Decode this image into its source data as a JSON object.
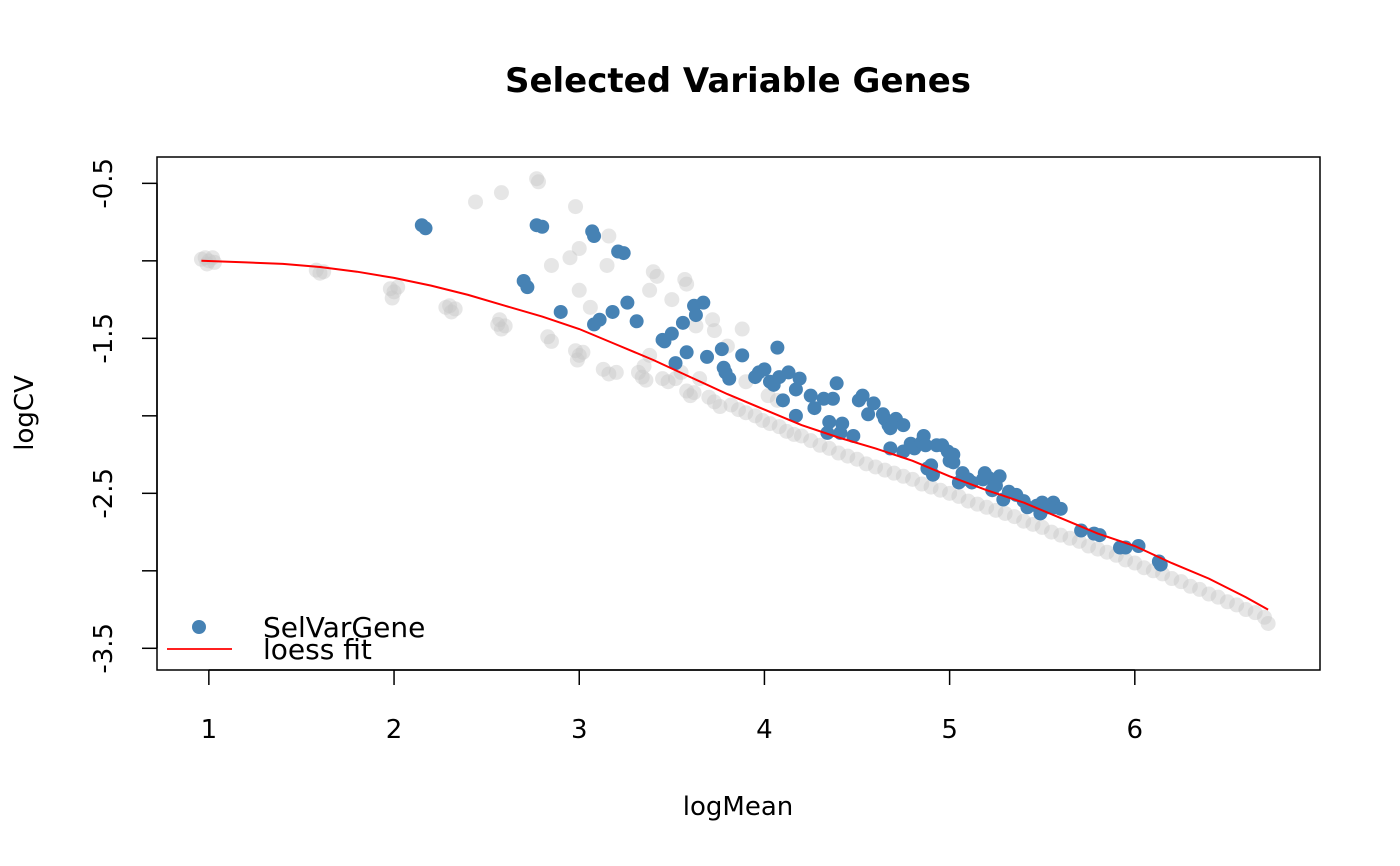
{
  "chart_data": {
    "type": "scatter",
    "title": "Selected Variable Genes",
    "xlabel": "logMean",
    "ylabel": "logCV",
    "xlim": [
      0.72,
      7.0
    ],
    "ylim": [
      -3.64,
      -0.33
    ],
    "xticks": [
      1,
      2,
      3,
      4,
      5,
      6
    ],
    "xtick_labels": [
      "1",
      "2",
      "3",
      "4",
      "5",
      "6"
    ],
    "yticks": [
      -0.5,
      -1.0,
      -1.5,
      -2.0,
      -2.5,
      -3.0,
      -3.5
    ],
    "ytick_labels": [
      "-0.5",
      "",
      "-1.5",
      "",
      "-2.5",
      "",
      "-3.5"
    ],
    "grid": false,
    "legend": {
      "position": "bottom-left",
      "entries": [
        {
          "label": "SelVarGene",
          "marker": "point",
          "color": "#4682B4"
        },
        {
          "label": "loess fit",
          "marker": "line",
          "color": "#FF0000"
        }
      ]
    },
    "colors": {
      "background_genes": "#C8C8C8",
      "selected_genes": "#4682B4",
      "loess": "#FF0000"
    },
    "series": [
      {
        "name": "SelVarGene",
        "kind": "points",
        "points": [
          [
            2.15,
            -0.77
          ],
          [
            2.17,
            -0.79
          ],
          [
            2.7,
            -1.13
          ],
          [
            2.72,
            -1.17
          ],
          [
            2.77,
            -0.77
          ],
          [
            2.8,
            -0.78
          ],
          [
            2.9,
            -1.33
          ],
          [
            3.07,
            -0.81
          ],
          [
            3.08,
            -0.84
          ],
          [
            3.08,
            -1.41
          ],
          [
            3.11,
            -1.38
          ],
          [
            3.18,
            -1.33
          ],
          [
            3.21,
            -0.94
          ],
          [
            3.24,
            -0.95
          ],
          [
            3.26,
            -1.27
          ],
          [
            3.31,
            -1.39
          ],
          [
            3.45,
            -1.51
          ],
          [
            3.46,
            -1.52
          ],
          [
            3.5,
            -1.47
          ],
          [
            3.52,
            -1.66
          ],
          [
            3.56,
            -1.4
          ],
          [
            3.58,
            -1.59
          ],
          [
            3.62,
            -1.29
          ],
          [
            3.63,
            -1.35
          ],
          [
            3.67,
            -1.27
          ],
          [
            3.69,
            -1.62
          ],
          [
            3.77,
            -1.57
          ],
          [
            3.78,
            -1.69
          ],
          [
            3.79,
            -1.72
          ],
          [
            3.81,
            -1.76
          ],
          [
            3.88,
            -1.61
          ],
          [
            3.95,
            -1.75
          ],
          [
            3.97,
            -1.72
          ],
          [
            4.0,
            -1.7
          ],
          [
            4.03,
            -1.78
          ],
          [
            4.05,
            -1.8
          ],
          [
            4.07,
            -1.56
          ],
          [
            4.08,
            -1.75
          ],
          [
            4.1,
            -1.9
          ],
          [
            4.13,
            -1.72
          ],
          [
            4.17,
            -1.83
          ],
          [
            4.17,
            -2.0
          ],
          [
            4.19,
            -1.76
          ],
          [
            4.25,
            -1.87
          ],
          [
            4.27,
            -1.95
          ],
          [
            4.32,
            -1.89
          ],
          [
            4.34,
            -2.11
          ],
          [
            4.35,
            -2.04
          ],
          [
            4.37,
            -1.89
          ],
          [
            4.39,
            -1.79
          ],
          [
            4.41,
            -2.11
          ],
          [
            4.42,
            -2.05
          ],
          [
            4.48,
            -2.13
          ],
          [
            4.51,
            -1.9
          ],
          [
            4.53,
            -1.87
          ],
          [
            4.56,
            -1.99
          ],
          [
            4.59,
            -1.92
          ],
          [
            4.64,
            -1.99
          ],
          [
            4.65,
            -2.02
          ],
          [
            4.66,
            -2.03
          ],
          [
            4.67,
            -2.06
          ],
          [
            4.68,
            -2.08
          ],
          [
            4.68,
            -2.21
          ],
          [
            4.71,
            -2.02
          ],
          [
            4.75,
            -2.06
          ],
          [
            4.75,
            -2.23
          ],
          [
            4.79,
            -2.18
          ],
          [
            4.81,
            -2.21
          ],
          [
            4.85,
            -2.17
          ],
          [
            4.86,
            -2.13
          ],
          [
            4.87,
            -2.19
          ],
          [
            4.88,
            -2.34
          ],
          [
            4.9,
            -2.32
          ],
          [
            4.91,
            -2.38
          ],
          [
            4.93,
            -2.19
          ],
          [
            4.96,
            -2.19
          ],
          [
            4.99,
            -2.23
          ],
          [
            5.0,
            -2.29
          ],
          [
            5.02,
            -2.25
          ],
          [
            5.02,
            -2.3
          ],
          [
            5.05,
            -2.43
          ],
          [
            5.07,
            -2.37
          ],
          [
            5.1,
            -2.41
          ],
          [
            5.12,
            -2.43
          ],
          [
            5.18,
            -2.41
          ],
          [
            5.19,
            -2.37
          ],
          [
            5.21,
            -2.4
          ],
          [
            5.23,
            -2.48
          ],
          [
            5.25,
            -2.45
          ],
          [
            5.27,
            -2.39
          ],
          [
            5.29,
            -2.54
          ],
          [
            5.32,
            -2.49
          ],
          [
            5.36,
            -2.51
          ],
          [
            5.4,
            -2.55
          ],
          [
            5.42,
            -2.59
          ],
          [
            5.47,
            -2.58
          ],
          [
            5.49,
            -2.63
          ],
          [
            5.5,
            -2.56
          ],
          [
            5.53,
            -2.59
          ],
          [
            5.56,
            -2.56
          ],
          [
            5.57,
            -2.59
          ],
          [
            5.6,
            -2.6
          ],
          [
            5.71,
            -2.74
          ],
          [
            5.78,
            -2.76
          ],
          [
            5.81,
            -2.77
          ],
          [
            5.92,
            -2.85
          ],
          [
            5.95,
            -2.85
          ],
          [
            6.02,
            -2.84
          ],
          [
            6.13,
            -2.94
          ],
          [
            6.14,
            -2.96
          ]
        ]
      },
      {
        "name": "",
        "kind": "points",
        "note_color": "background_genes",
        "points": [
          [
            0.96,
            -0.99
          ],
          [
            0.98,
            -0.98
          ],
          [
            1.0,
            -1.0
          ],
          [
            1.02,
            -0.98
          ],
          [
            1.03,
            -1.01
          ],
          [
            0.99,
            -1.02
          ],
          [
            1.58,
            -1.06
          ],
          [
            1.6,
            -1.08
          ],
          [
            1.62,
            -1.07
          ],
          [
            1.98,
            -1.18
          ],
          [
            2.0,
            -1.2
          ],
          [
            2.02,
            -1.17
          ],
          [
            1.99,
            -1.24
          ],
          [
            2.28,
            -1.3
          ],
          [
            2.31,
            -1.33
          ],
          [
            2.33,
            -1.31
          ],
          [
            2.3,
            -1.29
          ],
          [
            2.56,
            -1.41
          ],
          [
            2.58,
            -1.44
          ],
          [
            2.6,
            -1.42
          ],
          [
            2.57,
            -1.38
          ],
          [
            2.83,
            -1.49
          ],
          [
            2.85,
            -1.52
          ],
          [
            2.98,
            -1.58
          ],
          [
            3.0,
            -1.61
          ],
          [
            3.02,
            -1.59
          ],
          [
            2.99,
            -1.64
          ],
          [
            3.13,
            -1.7
          ],
          [
            3.16,
            -1.73
          ],
          [
            3.2,
            -1.72
          ],
          [
            3.32,
            -1.72
          ],
          [
            3.34,
            -1.75
          ],
          [
            3.36,
            -1.77
          ],
          [
            3.45,
            -1.76
          ],
          [
            3.48,
            -1.78
          ],
          [
            3.52,
            -1.76
          ],
          [
            3.58,
            -1.84
          ],
          [
            3.6,
            -1.87
          ],
          [
            3.62,
            -1.85
          ],
          [
            3.7,
            -1.88
          ],
          [
            3.73,
            -1.91
          ],
          [
            3.76,
            -1.94
          ],
          [
            3.82,
            -1.93
          ],
          [
            3.86,
            -1.96
          ],
          [
            3.9,
            -1.98
          ],
          [
            3.95,
            -2.0
          ],
          [
            3.99,
            -2.03
          ],
          [
            4.03,
            -2.05
          ],
          [
            4.08,
            -2.07
          ],
          [
            4.12,
            -2.1
          ],
          [
            4.16,
            -2.12
          ],
          [
            4.2,
            -2.13
          ],
          [
            4.25,
            -2.16
          ],
          [
            4.3,
            -2.19
          ],
          [
            4.35,
            -2.21
          ],
          [
            4.4,
            -2.24
          ],
          [
            4.45,
            -2.26
          ],
          [
            4.5,
            -2.28
          ],
          [
            4.55,
            -2.31
          ],
          [
            4.6,
            -2.33
          ],
          [
            4.65,
            -2.35
          ],
          [
            4.7,
            -2.37
          ],
          [
            4.75,
            -2.39
          ],
          [
            4.8,
            -2.41
          ],
          [
            4.85,
            -2.44
          ],
          [
            4.9,
            -2.46
          ],
          [
            4.95,
            -2.48
          ],
          [
            5.0,
            -2.5
          ],
          [
            5.05,
            -2.52
          ],
          [
            5.1,
            -2.55
          ],
          [
            5.15,
            -2.57
          ],
          [
            5.2,
            -2.59
          ],
          [
            5.25,
            -2.61
          ],
          [
            5.3,
            -2.63
          ],
          [
            5.35,
            -2.65
          ],
          [
            5.4,
            -2.68
          ],
          [
            5.45,
            -2.7
          ],
          [
            5.5,
            -2.72
          ],
          [
            5.55,
            -2.75
          ],
          [
            5.6,
            -2.77
          ],
          [
            5.65,
            -2.79
          ],
          [
            5.7,
            -2.81
          ],
          [
            5.75,
            -2.84
          ],
          [
            5.8,
            -2.86
          ],
          [
            5.85,
            -2.88
          ],
          [
            5.9,
            -2.9
          ],
          [
            5.95,
            -2.93
          ],
          [
            6.0,
            -2.95
          ],
          [
            6.05,
            -2.98
          ],
          [
            6.1,
            -3.0
          ],
          [
            6.15,
            -3.02
          ],
          [
            6.2,
            -3.05
          ],
          [
            6.25,
            -3.07
          ],
          [
            6.3,
            -3.1
          ],
          [
            6.35,
            -3.12
          ],
          [
            6.4,
            -3.15
          ],
          [
            6.45,
            -3.17
          ],
          [
            6.5,
            -3.2
          ],
          [
            6.55,
            -3.22
          ],
          [
            6.6,
            -3.25
          ],
          [
            6.65,
            -3.27
          ],
          [
            6.7,
            -3.3
          ],
          [
            6.72,
            -3.34
          ],
          [
            2.44,
            -0.62
          ],
          [
            2.58,
            -0.56
          ],
          [
            2.77,
            -0.47
          ],
          [
            2.78,
            -0.49
          ],
          [
            2.98,
            -0.65
          ],
          [
            3.0,
            -0.92
          ],
          [
            2.95,
            -0.98
          ],
          [
            2.85,
            -1.03
          ],
          [
            3.0,
            -1.19
          ],
          [
            3.06,
            -1.3
          ],
          [
            3.15,
            -1.03
          ],
          [
            3.16,
            -0.84
          ],
          [
            3.4,
            -1.07
          ],
          [
            3.42,
            -1.1
          ],
          [
            3.38,
            -1.19
          ],
          [
            3.5,
            -1.25
          ],
          [
            3.57,
            -1.12
          ],
          [
            3.58,
            -1.15
          ],
          [
            3.72,
            -1.38
          ],
          [
            3.73,
            -1.45
          ],
          [
            3.88,
            -1.44
          ],
          [
            3.8,
            -1.55
          ],
          [
            3.9,
            -1.78
          ],
          [
            4.02,
            -1.87
          ],
          [
            4.07,
            -1.9
          ],
          [
            3.63,
            -1.42
          ],
          [
            3.38,
            -1.61
          ],
          [
            3.35,
            -1.68
          ],
          [
            3.55,
            -1.72
          ],
          [
            3.65,
            -1.76
          ]
        ]
      },
      {
        "name": "loess fit",
        "kind": "line",
        "points": [
          [
            0.96,
            -1.0
          ],
          [
            1.2,
            -1.01
          ],
          [
            1.4,
            -1.02
          ],
          [
            1.6,
            -1.04
          ],
          [
            1.8,
            -1.07
          ],
          [
            2.0,
            -1.11
          ],
          [
            2.2,
            -1.16
          ],
          [
            2.4,
            -1.22
          ],
          [
            2.6,
            -1.29
          ],
          [
            2.8,
            -1.36
          ],
          [
            3.0,
            -1.44
          ],
          [
            3.2,
            -1.54
          ],
          [
            3.4,
            -1.64
          ],
          [
            3.6,
            -1.75
          ],
          [
            3.8,
            -1.86
          ],
          [
            4.0,
            -1.96
          ],
          [
            4.2,
            -2.06
          ],
          [
            4.4,
            -2.14
          ],
          [
            4.6,
            -2.21
          ],
          [
            4.8,
            -2.29
          ],
          [
            5.0,
            -2.39
          ],
          [
            5.2,
            -2.48
          ],
          [
            5.4,
            -2.56
          ],
          [
            5.6,
            -2.66
          ],
          [
            5.8,
            -2.76
          ],
          [
            6.0,
            -2.84
          ],
          [
            6.2,
            -2.95
          ],
          [
            6.4,
            -3.05
          ],
          [
            6.6,
            -3.17
          ],
          [
            6.72,
            -3.25
          ]
        ]
      }
    ]
  }
}
